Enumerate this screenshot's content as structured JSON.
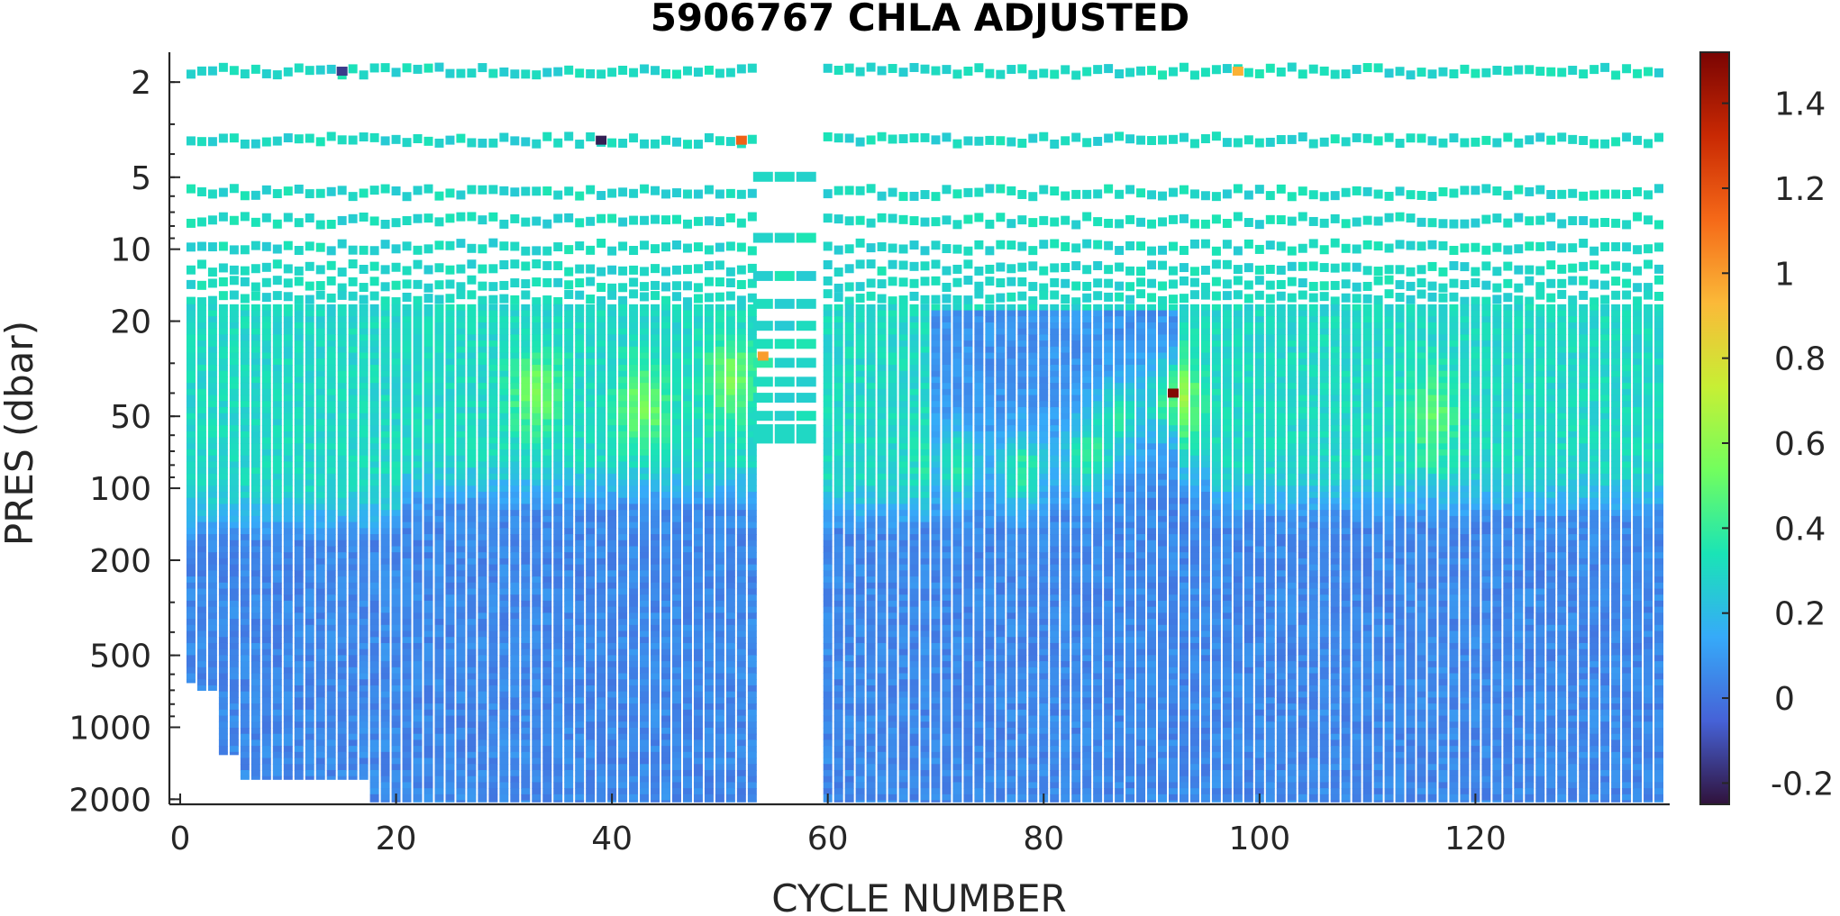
{
  "chart_data": {
    "type": "heatmap",
    "title": "5906767  CHLA ADJUSTED",
    "xlabel": "CYCLE NUMBER",
    "ylabel": "PRES (dbar)",
    "x_axis": {
      "range": [
        -1,
        138
      ],
      "ticks": [
        0,
        20,
        40,
        60,
        80,
        100,
        120
      ],
      "tick_labels": [
        "0",
        "20",
        "40",
        "60",
        "80",
        "100",
        "120"
      ]
    },
    "y_axis": {
      "scale": "log",
      "reversed": true,
      "range": [
        1.5,
        2100
      ],
      "ticks": [
        2,
        5,
        10,
        20,
        50,
        100,
        200,
        500,
        1000,
        2000
      ],
      "tick_labels": [
        "2",
        "5",
        "10",
        "20",
        "50",
        "100",
        "200",
        "500",
        "1000",
        "2000"
      ]
    },
    "colorbar": {
      "range": [
        -0.25,
        1.52
      ],
      "ticks": [
        -0.2,
        0,
        0.2,
        0.4,
        0.6,
        0.8,
        1,
        1.2,
        1.4
      ],
      "tick_labels": [
        "-0.2",
        "0",
        "0.2",
        "0.4",
        "0.6",
        "0.8",
        "1",
        "1.2",
        "1.4"
      ],
      "colormap": "turbo",
      "colormap_stops": [
        "#30123b",
        "#4662d7",
        "#36aaf9",
        "#1ae4b6",
        "#72fe5e",
        "#c7ef34",
        "#fbb938",
        "#f56918",
        "#c92903",
        "#7a0403"
      ]
    },
    "cycles": {
      "first": 1,
      "last": 137,
      "missing": [
        54,
        55,
        56,
        57,
        58,
        59
      ]
    },
    "sparse_profile_cycles": [
      54,
      55,
      56,
      57,
      58,
      59
    ],
    "sparse_profile_max_pres": 65,
    "near_surface_levels_dbar": [
      1.8,
      3.5,
      5.8,
      7.6,
      9.8,
      12,
      14,
      16
    ],
    "max_pressure_by_cycle": [
      {
        "from": 1,
        "to": 1,
        "pres": 650
      },
      {
        "from": 2,
        "to": 3,
        "pres": 700
      },
      {
        "from": 4,
        "to": 5,
        "pres": 1300
      },
      {
        "from": 6,
        "to": 17,
        "pres": 1650
      },
      {
        "from": 18,
        "to": 53,
        "pres": 2050
      },
      {
        "from": 60,
        "to": 137,
        "pres": 2050
      }
    ],
    "profile_shape": {
      "surface_chla": 0.3,
      "deep_chla": 0.05,
      "mixed_layer_base_dbar": [
        {
          "from": 1,
          "to": 20,
          "pres": 130
        },
        {
          "from": 21,
          "to": 53,
          "pres": 100
        },
        {
          "from": 60,
          "to": 70,
          "pres": 120
        },
        {
          "from": 71,
          "to": 95,
          "pres": 90
        },
        {
          "from": 96,
          "to": 137,
          "pres": 110
        }
      ],
      "low_surface_cycles": [
        {
          "from": 70,
          "to": 92,
          "chla": 0.08
        }
      ],
      "subsurface_maxima": [
        {
          "cycle": 33,
          "pres": 40,
          "chla": 0.55
        },
        {
          "cycle": 43,
          "pres": 45,
          "chla": 0.55
        },
        {
          "cycle": 51,
          "pres": 35,
          "chla": 0.55
        },
        {
          "cycle": 72,
          "pres": 80,
          "chla": 0.6
        },
        {
          "cycle": 78,
          "pres": 85,
          "chla": 0.62
        },
        {
          "cycle": 84,
          "pres": 75,
          "chla": 0.6
        },
        {
          "cycle": 87,
          "pres": 50,
          "chla": 0.55
        },
        {
          "cycle": 92,
          "pres": 42,
          "chla": 0.7
        },
        {
          "cycle": 116,
          "pres": 50,
          "chla": 0.5
        }
      ],
      "outliers": [
        {
          "cycle": 92,
          "pres": 40,
          "chla": 1.5
        },
        {
          "cycle": 52,
          "pres": 3.5,
          "chla": 1.15
        },
        {
          "cycle": 54,
          "pres": 28,
          "chla": 1.0
        },
        {
          "cycle": 98,
          "pres": 1.8,
          "chla": 0.95
        },
        {
          "cycle": 39,
          "pres": 3.5,
          "chla": -0.22
        },
        {
          "cycle": 15,
          "pres": 1.8,
          "chla": -0.15
        }
      ]
    },
    "grid": false
  }
}
